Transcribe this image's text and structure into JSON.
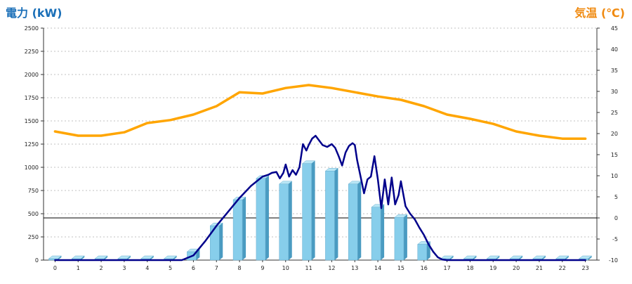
{
  "chart_data": {
    "type": "bar+line",
    "left_axis_title": "電力 (kW)",
    "right_axis_title": "気温 (℃)",
    "left_ylim": [
      0,
      2500
    ],
    "left_ticks": [
      0,
      250,
      500,
      750,
      1000,
      1250,
      1500,
      1750,
      2000,
      2250,
      2500
    ],
    "right_ylim": [
      -10,
      45
    ],
    "right_ticks": [
      -10,
      -5,
      0,
      5,
      10,
      15,
      20,
      25,
      30,
      35,
      40,
      45
    ],
    "x_categories": [
      "0",
      "1",
      "2",
      "3",
      "4",
      "5",
      "6",
      "7",
      "8",
      "9",
      "10",
      "11",
      "12",
      "13",
      "14",
      "15",
      "16",
      "17",
      "18",
      "19",
      "20",
      "21",
      "22",
      "23"
    ],
    "grid": "horizontal dotted",
    "colors": {
      "bar_face": "#87ceeb",
      "bar_side": "#4a9bc1",
      "bar_top": "#b8e6f5",
      "power_line": "#00008b",
      "temperature_line": "#ffa500",
      "left_title": "#1a6fb8",
      "right_title": "#f08a10"
    },
    "series": [
      {
        "type": "bar",
        "axis": "left",
        "values": [
          10,
          10,
          10,
          10,
          10,
          10,
          90,
          370,
          650,
          880,
          820,
          1040,
          960,
          820,
          570,
          460,
          170,
          10,
          10,
          10,
          10,
          10,
          10,
          10
        ]
      },
      {
        "type": "line",
        "axis": "left",
        "x": [
          0,
          5.5,
          6,
          6.5,
          7,
          7.5,
          8,
          8.5,
          9,
          9.25,
          9.4,
          9.6,
          9.75,
          9.9,
          10,
          10.15,
          10.3,
          10.45,
          10.6,
          10.75,
          10.9,
          11,
          11.15,
          11.3,
          11.45,
          11.6,
          11.8,
          12,
          12.15,
          12.3,
          12.45,
          12.6,
          12.75,
          12.9,
          13,
          13.1,
          13.25,
          13.4,
          13.55,
          13.7,
          13.85,
          14,
          14.15,
          14.3,
          14.45,
          14.6,
          14.75,
          14.9,
          15,
          15.2,
          15.4,
          15.6,
          15.8,
          16,
          16.2,
          16.4,
          16.6,
          16.8,
          17,
          23
        ],
        "values": [
          0,
          0,
          50,
          200,
          370,
          520,
          670,
          800,
          900,
          920,
          940,
          950,
          880,
          940,
          1030,
          900,
          970,
          920,
          1000,
          1250,
          1180,
          1240,
          1310,
          1340,
          1290,
          1240,
          1220,
          1250,
          1210,
          1120,
          1020,
          1160,
          1230,
          1260,
          1240,
          1080,
          900,
          720,
          870,
          900,
          1120,
          870,
          560,
          870,
          600,
          890,
          600,
          700,
          850,
          580,
          500,
          440,
          350,
          270,
          170,
          90,
          30,
          5,
          0,
          0
        ]
      },
      {
        "type": "line",
        "axis": "right",
        "x": [
          0,
          1,
          2,
          3,
          4,
          5,
          6,
          7,
          8,
          9,
          10,
          11,
          12,
          13,
          14,
          15,
          16,
          17,
          18,
          19,
          20,
          21,
          22,
          23
        ],
        "values": [
          20.5,
          19.5,
          19.5,
          20.3,
          22.5,
          23.2,
          24.5,
          26.5,
          29.8,
          29.5,
          30.8,
          31.5,
          30.8,
          29.8,
          28.8,
          28,
          26.5,
          24.5,
          23.5,
          22.3,
          20.5,
          19.5,
          18.8,
          18.8
        ]
      }
    ]
  }
}
